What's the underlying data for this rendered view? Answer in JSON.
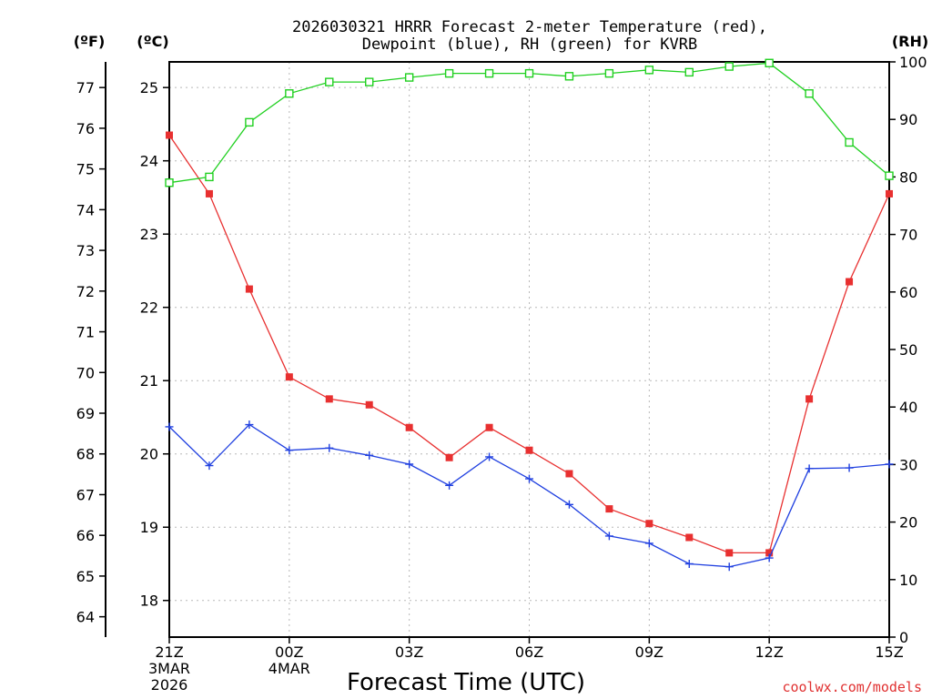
{
  "chart_data": {
    "type": "line",
    "title_line1": "2026030321 HRRR Forecast 2-meter Temperature (red),",
    "title_line2": "Dewpoint (blue), RH (green) for KVRB",
    "xlabel": "Forecast Time (UTC)",
    "x_ticks": [
      {
        "hour": 0,
        "label": "21Z",
        "sub1": "3MAR",
        "sub2": "2026"
      },
      {
        "hour": 3,
        "label": "00Z",
        "sub1": "4MAR",
        "sub2": ""
      },
      {
        "hour": 6,
        "label": "03Z",
        "sub1": "",
        "sub2": ""
      },
      {
        "hour": 9,
        "label": "06Z",
        "sub1": "",
        "sub2": ""
      },
      {
        "hour": 12,
        "label": "09Z",
        "sub1": "",
        "sub2": ""
      },
      {
        "hour": 15,
        "label": "12Z",
        "sub1": "",
        "sub2": ""
      },
      {
        "hour": 18,
        "label": "15Z",
        "sub1": "",
        "sub2": ""
      }
    ],
    "xlim": [
      0,
      18
    ],
    "left_axis_c": {
      "unit": "(ºC)",
      "ylim": [
        17.5,
        25.35
      ],
      "ticks": [
        18,
        19,
        20,
        21,
        22,
        23,
        24,
        25
      ]
    },
    "left_axis_f": {
      "unit": "(ºF)",
      "ticks": [
        64,
        65,
        66,
        67,
        68,
        69,
        70,
        71,
        72,
        73,
        74,
        75,
        76,
        77
      ]
    },
    "right_axis_rh": {
      "unit": "(RH)",
      "ylim": [
        0,
        100
      ],
      "ticks": [
        0,
        10,
        20,
        30,
        40,
        50,
        60,
        70,
        80,
        90,
        100
      ]
    },
    "x": [
      0,
      1,
      2,
      3,
      4,
      5,
      6,
      7,
      8,
      9,
      10,
      11,
      12,
      13,
      14,
      15,
      16,
      17,
      18
    ],
    "series": [
      {
        "name": "Temperature",
        "axis": "c",
        "color": "#e83030",
        "marker": "filled-square",
        "values": [
          24.35,
          23.55,
          22.25,
          21.05,
          20.75,
          20.67,
          20.36,
          19.95,
          20.36,
          20.05,
          19.73,
          19.25,
          19.05,
          18.86,
          18.65,
          18.65,
          20.75,
          22.35,
          23.55
        ]
      },
      {
        "name": "Dewpoint",
        "axis": "c",
        "color": "#2040e0",
        "marker": "plus",
        "values": [
          20.37,
          19.84,
          20.4,
          20.05,
          20.08,
          19.98,
          19.86,
          19.57,
          19.96,
          19.66,
          19.31,
          18.88,
          18.78,
          18.5,
          18.46,
          18.58,
          19.8,
          19.81,
          19.86
        ]
      },
      {
        "name": "RH",
        "axis": "rh",
        "color": "#20d020",
        "marker": "open-square",
        "values": [
          79,
          80,
          89.5,
          94.5,
          96.5,
          96.5,
          97.3,
          98,
          98,
          98,
          97.5,
          98,
          98.6,
          98.2,
          99.2,
          99.8,
          94.5,
          86,
          80.2
        ]
      }
    ]
  },
  "credit": "coolwx.com/models"
}
